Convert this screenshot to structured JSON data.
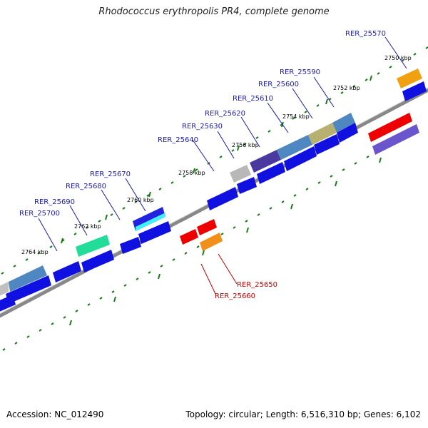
{
  "title": "Rhodococcus erythropolis PR4, complete genome",
  "footer": {
    "accession": "Accession: NC_012490",
    "topology": "Topology: circular; Length: 6,516,310 bp; Genes: 6,102"
  },
  "colors": {
    "backbone": "#888888",
    "tick": "#1a7a1a",
    "forward_label": "#1a1ab0",
    "reverse_label": "#c00000"
  },
  "kbp_labels": [
    "2750 kbp",
    "2752 kbp",
    "2754 kbp",
    "2756 kbp",
    "2758 kbp",
    "2760 kbp",
    "2762 kbp",
    "2764 kbp"
  ],
  "forward_gene_labels": [
    "RER_25570",
    "RER_25590",
    "RER_25600",
    "RER_25610",
    "RER_25620",
    "RER_25630",
    "RER_25640",
    "RER_25670",
    "RER_25680",
    "RER_25690",
    "RER_25700"
  ],
  "reverse_gene_labels": [
    "RER_25650",
    "RER_25660"
  ]
}
